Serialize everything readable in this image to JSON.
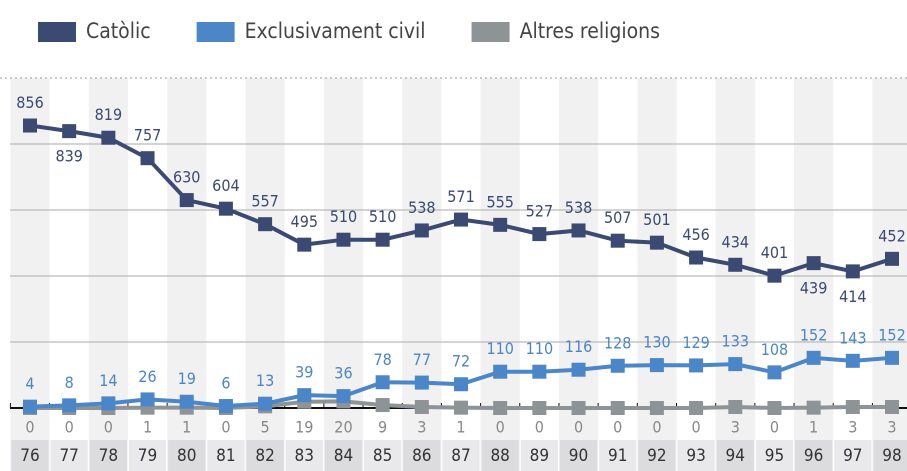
{
  "chart_data": {
    "type": "line",
    "categories": [
      "76",
      "77",
      "78",
      "79",
      "80",
      "81",
      "82",
      "83",
      "84",
      "85",
      "86",
      "87",
      "88",
      "89",
      "90",
      "91",
      "92",
      "93",
      "94",
      "95",
      "96",
      "97",
      "98"
    ],
    "series": [
      {
        "name": "Catòlic",
        "color": "#3b4a72",
        "values": [
          856,
          839,
          819,
          757,
          630,
          604,
          557,
          495,
          510,
          510,
          538,
          571,
          555,
          527,
          538,
          507,
          501,
          456,
          434,
          401,
          439,
          414,
          452
        ]
      },
      {
        "name": "Exclusivament civil",
        "color": "#4a86c8",
        "values": [
          4,
          8,
          14,
          26,
          19,
          6,
          13,
          39,
          36,
          78,
          77,
          72,
          110,
          110,
          116,
          128,
          130,
          129,
          133,
          108,
          152,
          143,
          152
        ]
      },
      {
        "name": "Altres religions",
        "color": "#8e9396",
        "values": [
          0,
          0,
          0,
          1,
          1,
          0,
          5,
          19,
          20,
          9,
          3,
          1,
          0,
          0,
          0,
          0,
          0,
          0,
          3,
          0,
          1,
          3,
          3
        ]
      }
    ],
    "ylim": [
      0,
      1000
    ],
    "yticks": [
      0,
      200,
      400,
      600,
      800
    ],
    "grid": true
  }
}
